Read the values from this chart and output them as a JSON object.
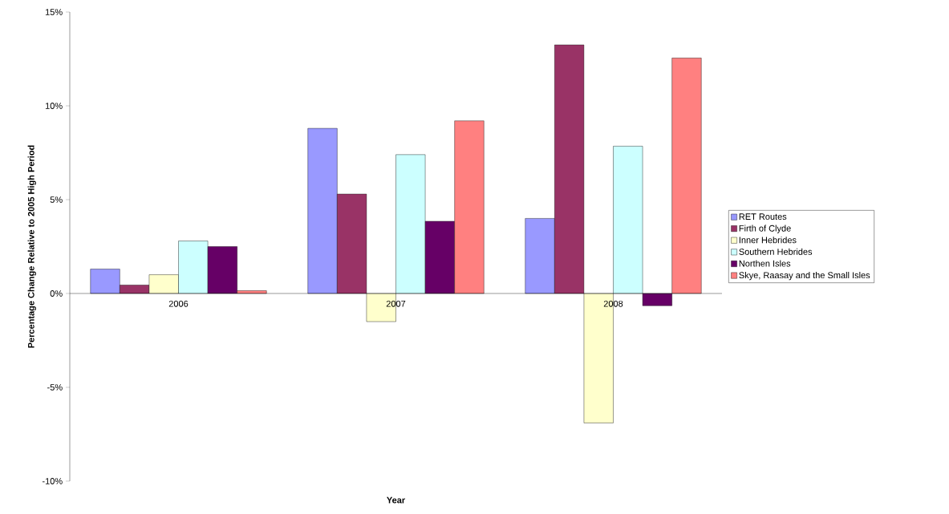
{
  "chart_data": {
    "type": "bar",
    "xlabel": "Year",
    "ylabel": "Percentage Change Relative to 2005 High Period",
    "categories": [
      "2006",
      "2007",
      "2008"
    ],
    "series": [
      {
        "name": "RET Routes",
        "color": "#9999ff",
        "values": [
          1.3,
          8.8,
          4.0
        ]
      },
      {
        "name": "Firth of Clyde",
        "color": "#993366",
        "values": [
          0.45,
          5.3,
          13.25
        ]
      },
      {
        "name": "Inner Hebrides",
        "color": "#ffffcc",
        "values": [
          1.0,
          -1.5,
          -6.9
        ]
      },
      {
        "name": "Southern Hebrides",
        "color": "#ccffff",
        "values": [
          2.8,
          7.4,
          7.85
        ]
      },
      {
        "name": "Northen Isles",
        "color": "#660066",
        "values": [
          2.5,
          3.85,
          -0.65
        ]
      },
      {
        "name": "Skye, Raasay and the Small Isles",
        "color": "#ff8080",
        "values": [
          0.15,
          9.2,
          12.55
        ]
      }
    ],
    "ylim": [
      -10,
      15
    ],
    "yticks": [
      {
        "value": -10,
        "label": "-10%"
      },
      {
        "value": -5,
        "label": "-5%"
      },
      {
        "value": 0,
        "label": "0%"
      },
      {
        "value": 5,
        "label": "5%"
      },
      {
        "value": 10,
        "label": "10%"
      },
      {
        "value": 15,
        "label": "15%"
      }
    ],
    "grid": false,
    "legend": "right"
  }
}
